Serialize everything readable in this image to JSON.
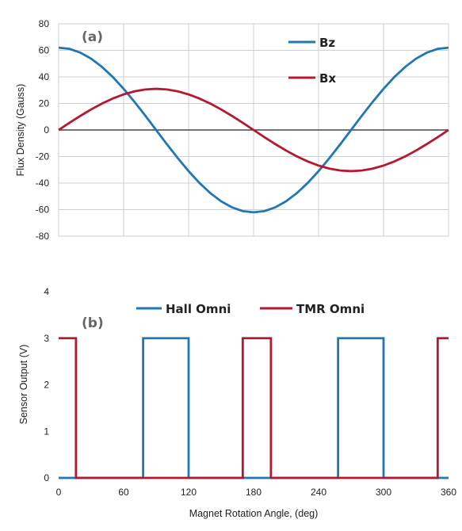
{
  "chart_data": [
    {
      "type": "line",
      "panel_label": "(a)",
      "ylabel": "Flux Density (Gauss)",
      "xlim": [
        0,
        360
      ],
      "ylim": [
        -80,
        80
      ],
      "x_ticks": [
        0,
        60,
        120,
        180,
        240,
        300,
        360
      ],
      "y_ticks": [
        -80,
        -60,
        -40,
        -20,
        0,
        20,
        40,
        60,
        80
      ],
      "grid": true,
      "legend_position": "top-right",
      "series": [
        {
          "name": "Bz",
          "color": "#1f77b4",
          "x": [
            0,
            10,
            20,
            30,
            40,
            50,
            60,
            70,
            80,
            90,
            100,
            110,
            120,
            130,
            140,
            150,
            160,
            170,
            180,
            190,
            200,
            210,
            220,
            230,
            240,
            250,
            260,
            270,
            280,
            290,
            300,
            310,
            320,
            330,
            340,
            350,
            360
          ],
          "y": [
            62,
            61.1,
            58.3,
            53.7,
            47.5,
            39.9,
            31,
            21.2,
            10.8,
            0,
            -10.8,
            -21.2,
            -31,
            -39.9,
            -47.5,
            -53.7,
            -58.3,
            -61.1,
            -62,
            -61.1,
            -58.3,
            -53.7,
            -47.5,
            -39.9,
            -31,
            -21.2,
            -10.8,
            0,
            10.8,
            21.2,
            31,
            39.9,
            47.5,
            53.7,
            58.3,
            61.1,
            62
          ]
        },
        {
          "name": "Bx",
          "color": "#b5192f",
          "x": [
            0,
            10,
            20,
            30,
            40,
            50,
            60,
            70,
            80,
            90,
            100,
            110,
            120,
            130,
            140,
            150,
            160,
            170,
            180,
            190,
            200,
            210,
            220,
            230,
            240,
            250,
            260,
            270,
            280,
            290,
            300,
            310,
            320,
            330,
            340,
            350,
            360
          ],
          "y": [
            0,
            5.4,
            10.6,
            15.5,
            19.9,
            23.7,
            26.8,
            29.1,
            30.5,
            31,
            30.5,
            29.1,
            26.8,
            23.7,
            19.9,
            15.5,
            10.6,
            5.4,
            0,
            -5.4,
            -10.6,
            -15.5,
            -19.9,
            -23.7,
            -26.8,
            -29.1,
            -30.5,
            -31,
            -30.5,
            -29.1,
            -26.8,
            -23.7,
            -19.9,
            -15.5,
            -10.6,
            -5.4,
            0
          ]
        }
      ]
    },
    {
      "type": "line",
      "panel_label": "(b)",
      "xlabel": "Magnet Rotation Angle, (deg)",
      "ylabel": "Sensor Output (V)",
      "xlim": [
        0,
        360
      ],
      "ylim": [
        0,
        4
      ],
      "x_ticks": [
        0,
        60,
        120,
        180,
        240,
        300,
        360
      ],
      "y_ticks": [
        0,
        1,
        2,
        3,
        4
      ],
      "grid": false,
      "legend_position": "top",
      "series": [
        {
          "name": "Hall Omni",
          "color": "#1f77b4",
          "x": [
            0,
            78,
            78,
            120,
            120,
            258,
            258,
            300,
            300,
            360
          ],
          "y": [
            0,
            0,
            3,
            3,
            0,
            0,
            3,
            3,
            0,
            0
          ]
        },
        {
          "name": "TMR Omni",
          "color": "#b5192f",
          "x": [
            0,
            16,
            16,
            170,
            170,
            196,
            196,
            350,
            350,
            360
          ],
          "y": [
            3,
            3,
            0,
            0,
            3,
            3,
            0,
            0,
            3,
            3
          ]
        }
      ]
    }
  ]
}
